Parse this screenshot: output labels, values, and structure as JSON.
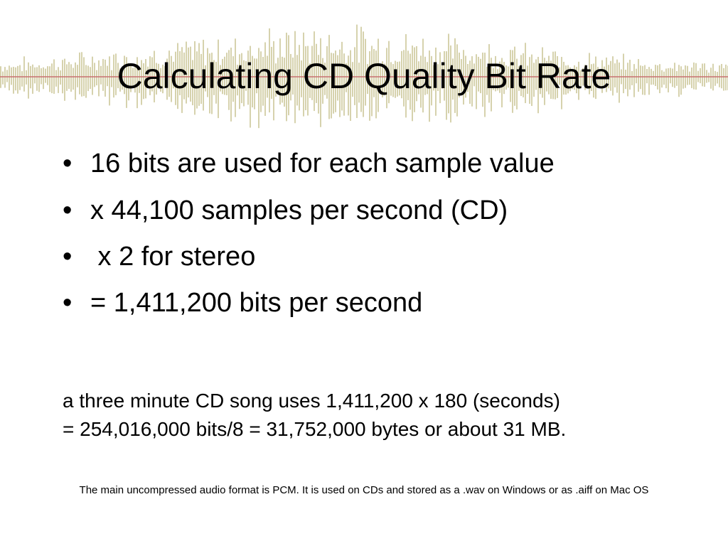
{
  "title": "Calculating CD Quality Bit Rate",
  "bullets": [
    "16 bits are used for each sample value",
    "x 44,100 samples per second (CD)",
    " x 2 for stereo",
    "= 1,411,200 bits per second"
  ],
  "example": [
    "a three minute CD song uses 1,411,200 x 180 (seconds)",
    "= 254,016,000 bits/8 = 31,752,000 bytes or about 31 MB."
  ],
  "footnote": "The main uncompressed audio format is PCM. It is used on CDs and stored as a .wav on Windows or as .aiff on Mac OS"
}
